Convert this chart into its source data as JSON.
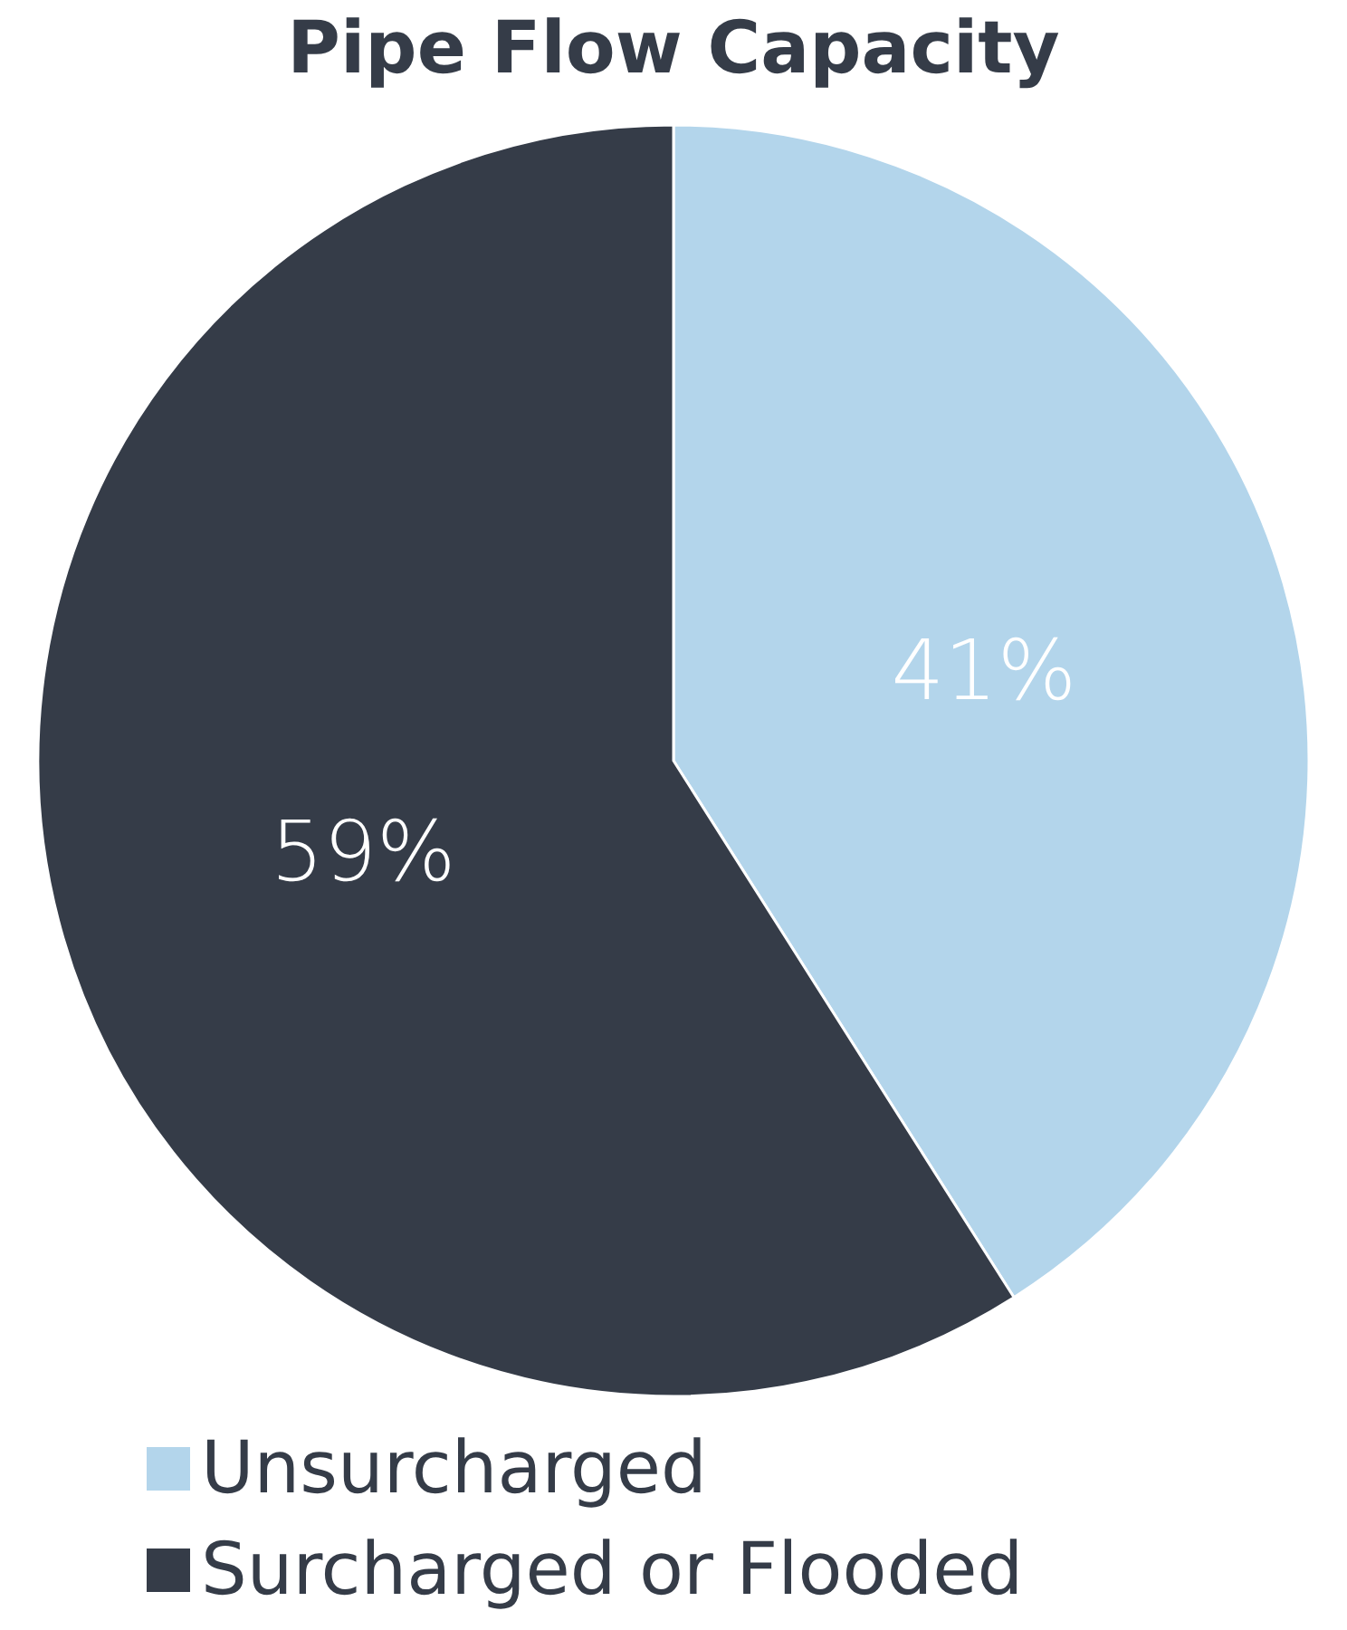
{
  "chart_data": {
    "type": "pie",
    "title": "Pipe Flow Capacity",
    "categories": [
      "Unsurcharged",
      "Surcharged or Flooded"
    ],
    "values": [
      41,
      59
    ],
    "colors": [
      "#b3d5eb",
      "#353c48"
    ],
    "value_labels": [
      "41%",
      "59%"
    ],
    "legend": "bottom left"
  }
}
